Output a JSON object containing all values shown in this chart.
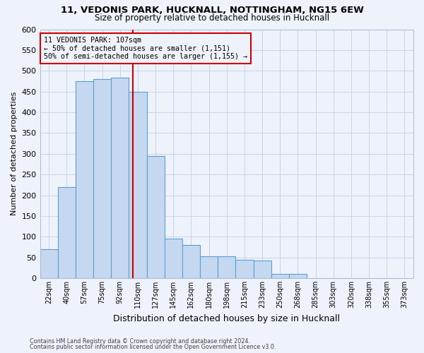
{
  "title1": "11, VEDONIS PARK, HUCKNALL, NOTTINGHAM, NG15 6EW",
  "title2": "Size of property relative to detached houses in Hucknall",
  "xlabel": "Distribution of detached houses by size in Hucknall",
  "ylabel": "Number of detached properties",
  "footnote1": "Contains HM Land Registry data © Crown copyright and database right 2024.",
  "footnote2": "Contains public sector information licensed under the Open Government Licence v3.0.",
  "categories": [
    "22sqm",
    "40sqm",
    "57sqm",
    "75sqm",
    "92sqm",
    "110sqm",
    "127sqm",
    "145sqm",
    "162sqm",
    "180sqm",
    "198sqm",
    "215sqm",
    "233sqm",
    "250sqm",
    "268sqm",
    "285sqm",
    "303sqm",
    "320sqm",
    "338sqm",
    "355sqm",
    "373sqm"
  ],
  "values": [
    70,
    220,
    475,
    480,
    483,
    450,
    295,
    96,
    80,
    53,
    53,
    45,
    42,
    11,
    11,
    0,
    0,
    0,
    0,
    0,
    0
  ],
  "bar_color": "#c5d8f0",
  "bar_edge_color": "#5a9fd4",
  "vline_x": 4.72,
  "vline_color": "#cc0000",
  "annotation_line1": "11 VEDONIS PARK: 107sqm",
  "annotation_line2": "← 50% of detached houses are smaller (1,151)",
  "annotation_line3": "50% of semi-detached houses are larger (1,155) →",
  "annotation_box_color": "#cc0000",
  "ylim": [
    0,
    600
  ],
  "yticks": [
    0,
    50,
    100,
    150,
    200,
    250,
    300,
    350,
    400,
    450,
    500,
    550,
    600
  ],
  "grid_color": "#c8d4e8",
  "bg_color": "#eef2fa",
  "title1_fontsize": 9.5,
  "title2_fontsize": 8.5,
  "footnote_fontsize": 5.8,
  "ylabel_fontsize": 8,
  "xlabel_fontsize": 9
}
